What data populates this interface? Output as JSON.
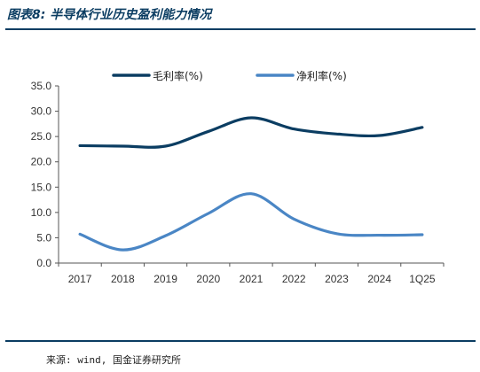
{
  "figure_title": "图表8:  半导体行业历史盈利能力情况",
  "source_note": "来源: wind, 国金证券研究所",
  "chart_data": {
    "type": "line",
    "title": "",
    "xlabel": "",
    "ylabel": "",
    "categories": [
      "2017",
      "2018",
      "2019",
      "2020",
      "2021",
      "2022",
      "2023",
      "2024",
      "1Q25"
    ],
    "ylim": [
      0,
      35
    ],
    "yticks": [
      0,
      5,
      10,
      15,
      20,
      25,
      30,
      35
    ],
    "ytick_labels": [
      "0.0",
      "5.0",
      "10.0",
      "15.0",
      "20.0",
      "25.0",
      "30.0",
      "35.0"
    ],
    "grid": false,
    "legend_position": "top-center",
    "series": [
      {
        "name": "毛利率(%)",
        "color": "#0b3d62",
        "values": [
          23.2,
          23.1,
          23.1,
          26.0,
          28.7,
          26.5,
          25.5,
          25.2,
          26.8
        ]
      },
      {
        "name": "净利率(%)",
        "color": "#4a86c5",
        "values": [
          5.7,
          2.6,
          5.4,
          9.8,
          13.7,
          8.7,
          5.8,
          5.5,
          5.6
        ]
      }
    ]
  }
}
